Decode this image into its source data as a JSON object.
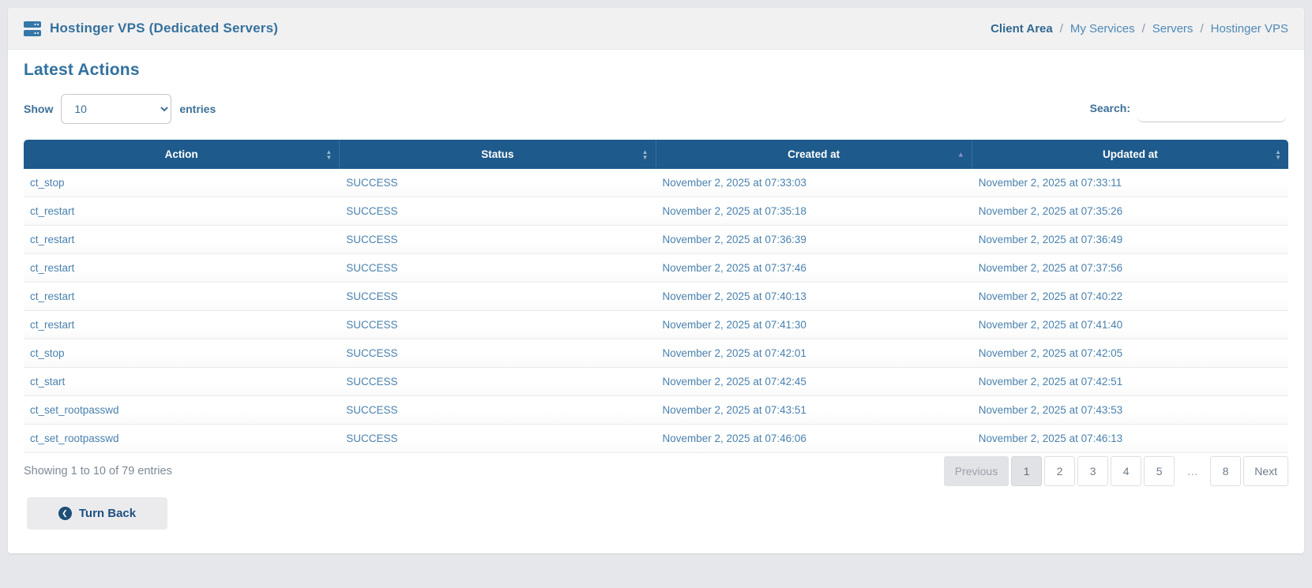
{
  "header": {
    "title": "Hostinger VPS (Dedicated Servers)",
    "breadcrumb_separator": "/",
    "breadcrumb": [
      {
        "label": "Client Area",
        "active": true
      },
      {
        "label": "My Services",
        "active": false
      },
      {
        "label": "Servers",
        "active": false
      },
      {
        "label": "Hostinger VPS",
        "active": false
      }
    ]
  },
  "page": {
    "heading": "Latest Actions"
  },
  "controls": {
    "show_label": "Show",
    "entries_label": "entries",
    "page_length": "10",
    "search_label": "Search:",
    "search_value": ""
  },
  "table": {
    "columns": [
      {
        "label": "Action",
        "sort": "both"
      },
      {
        "label": "Status",
        "sort": "both"
      },
      {
        "label": "Created at",
        "sort": "asc"
      },
      {
        "label": "Updated at",
        "sort": "both"
      }
    ],
    "rows": [
      {
        "action": "ct_stop",
        "status": "SUCCESS",
        "created_at": "November 2, 2025 at 07:33:03",
        "updated_at": "November 2, 2025 at 07:33:11"
      },
      {
        "action": "ct_restart",
        "status": "SUCCESS",
        "created_at": "November 2, 2025 at 07:35:18",
        "updated_at": "November 2, 2025 at 07:35:26"
      },
      {
        "action": "ct_restart",
        "status": "SUCCESS",
        "created_at": "November 2, 2025 at 07:36:39",
        "updated_at": "November 2, 2025 at 07:36:49"
      },
      {
        "action": "ct_restart",
        "status": "SUCCESS",
        "created_at": "November 2, 2025 at 07:37:46",
        "updated_at": "November 2, 2025 at 07:37:56"
      },
      {
        "action": "ct_restart",
        "status": "SUCCESS",
        "created_at": "November 2, 2025 at 07:40:13",
        "updated_at": "November 2, 2025 at 07:40:22"
      },
      {
        "action": "ct_restart",
        "status": "SUCCESS",
        "created_at": "November 2, 2025 at 07:41:30",
        "updated_at": "November 2, 2025 at 07:41:40"
      },
      {
        "action": "ct_stop",
        "status": "SUCCESS",
        "created_at": "November 2, 2025 at 07:42:01",
        "updated_at": "November 2, 2025 at 07:42:05"
      },
      {
        "action": "ct_start",
        "status": "SUCCESS",
        "created_at": "November 2, 2025 at 07:42:45",
        "updated_at": "November 2, 2025 at 07:42:51"
      },
      {
        "action": "ct_set_rootpasswd",
        "status": "SUCCESS",
        "created_at": "November 2, 2025 at 07:43:51",
        "updated_at": "November 2, 2025 at 07:43:53"
      },
      {
        "action": "ct_set_rootpasswd",
        "status": "SUCCESS",
        "created_at": "November 2, 2025 at 07:46:06",
        "updated_at": "November 2, 2025 at 07:46:13"
      }
    ]
  },
  "footer": {
    "info": "Showing 1 to 10 of 79 entries",
    "pagination": [
      {
        "label": "Previous",
        "type": "disabled"
      },
      {
        "label": "1",
        "type": "current"
      },
      {
        "label": "2",
        "type": "page"
      },
      {
        "label": "3",
        "type": "page"
      },
      {
        "label": "4",
        "type": "page"
      },
      {
        "label": "5",
        "type": "page"
      },
      {
        "label": "…",
        "type": "ellipsis"
      },
      {
        "label": "8",
        "type": "page"
      },
      {
        "label": "Next",
        "type": "page"
      }
    ]
  },
  "actions": {
    "turn_back_label": "Turn Back"
  },
  "colors": {
    "table_header_bg": "#1e5a8b",
    "link": "#4a81ad",
    "heading": "#31719f",
    "sort_active": "#8d8fd4",
    "card_header_bg": "#f1f1f2",
    "page_bg": "#e6e7ea"
  }
}
